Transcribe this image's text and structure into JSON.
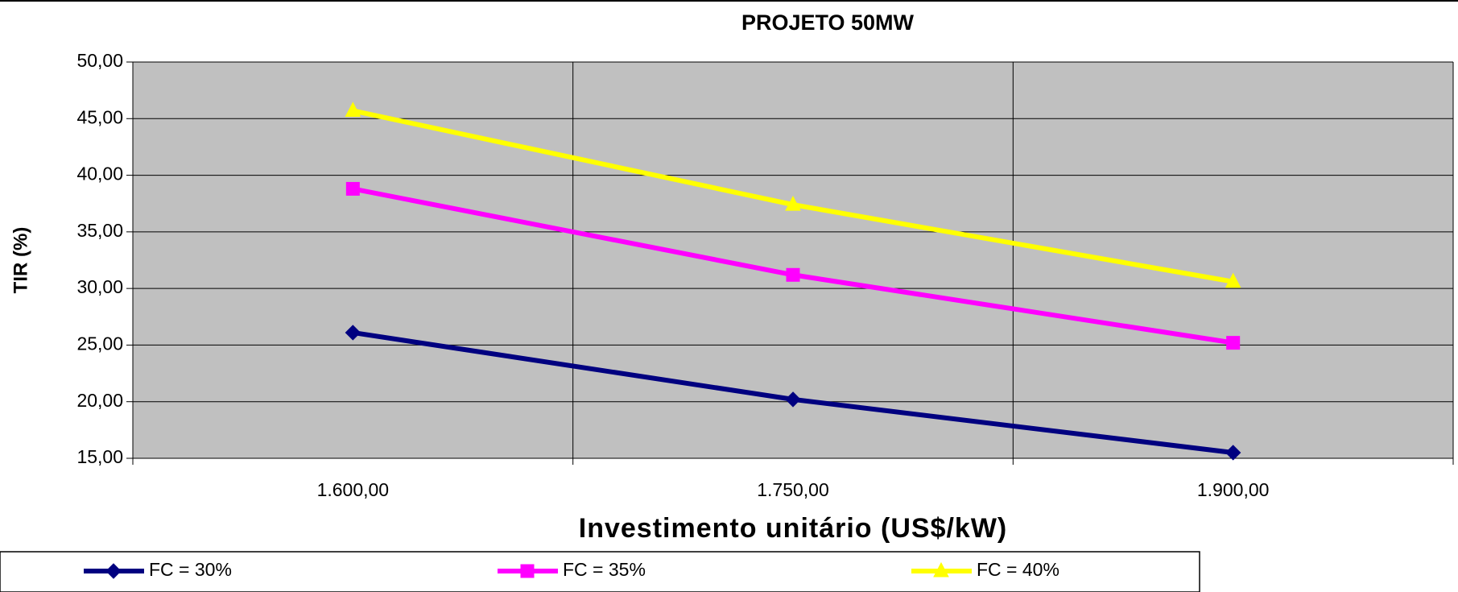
{
  "chart_data": {
    "type": "line",
    "title": "PROJETO 50MW",
    "x_label": "Investimento unitário (US$/kW)",
    "y_label": "TIR (%)",
    "categories": [
      "1.600,00",
      "1.750,00",
      "1.900,00"
    ],
    "series": [
      {
        "name": "FC = 30%",
        "color": "#000080",
        "marker": "diamond",
        "values": [
          26.1,
          20.2,
          15.5
        ]
      },
      {
        "name": "FC = 35%",
        "color": "#ff00ff",
        "marker": "square",
        "values": [
          38.8,
          31.2,
          25.2
        ]
      },
      {
        "name": "FC = 40%",
        "color": "#ffff00",
        "marker": "triangle",
        "values": [
          45.7,
          37.4,
          30.6
        ]
      }
    ],
    "ylim": [
      15,
      50
    ],
    "yticks": [
      {
        "value": 15,
        "label": "15,00"
      },
      {
        "value": 20,
        "label": "20,00"
      },
      {
        "value": 25,
        "label": "25,00"
      },
      {
        "value": 30,
        "label": "30,00"
      },
      {
        "value": 35,
        "label": "35,00"
      },
      {
        "value": 40,
        "label": "40,00"
      },
      {
        "value": 45,
        "label": "45,00"
      },
      {
        "value": 50,
        "label": "50,00"
      }
    ],
    "grid": true,
    "plot_background": "#c0c0c0",
    "legend": "bottom"
  }
}
